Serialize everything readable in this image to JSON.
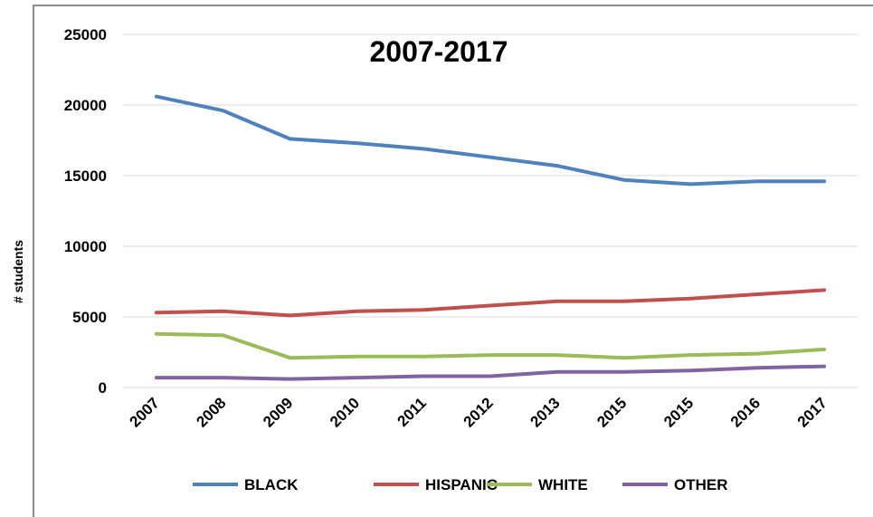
{
  "chart_data": {
    "type": "line",
    "title": "2007-2017",
    "xlabel": "",
    "ylabel": "# students",
    "ylim": [
      0,
      25000
    ],
    "yticks": [
      0,
      5000,
      10000,
      15000,
      20000,
      25000
    ],
    "yticks_labels": [
      "0",
      "5000",
      "10000",
      "15000",
      "20000",
      "25000"
    ],
    "categories": [
      "2007",
      "2008",
      "2009",
      "2010",
      "2011",
      "2012",
      "2013",
      "2015",
      "2015",
      "2016",
      "2017"
    ],
    "grid": true,
    "legend_position": "bottom",
    "series": [
      {
        "name": "BLACK",
        "color": "#4f81bd",
        "values": [
          20600,
          19600,
          17600,
          17300,
          16900,
          16300,
          15700,
          14700,
          14400,
          14600,
          14600
        ]
      },
      {
        "name": "HISPANIC",
        "color": "#c0504d",
        "values": [
          5300,
          5400,
          5100,
          5400,
          5500,
          5800,
          6100,
          6100,
          6300,
          6600,
          6900
        ]
      },
      {
        "name": "WHITE",
        "color": "#9bbb59",
        "values": [
          3800,
          3700,
          2100,
          2200,
          2200,
          2300,
          2300,
          2100,
          2300,
          2400,
          2700
        ]
      },
      {
        "name": "OTHER",
        "color": "#8064a2",
        "values": [
          700,
          700,
          600,
          700,
          800,
          800,
          1100,
          1100,
          1200,
          1400,
          1500
        ]
      }
    ]
  }
}
